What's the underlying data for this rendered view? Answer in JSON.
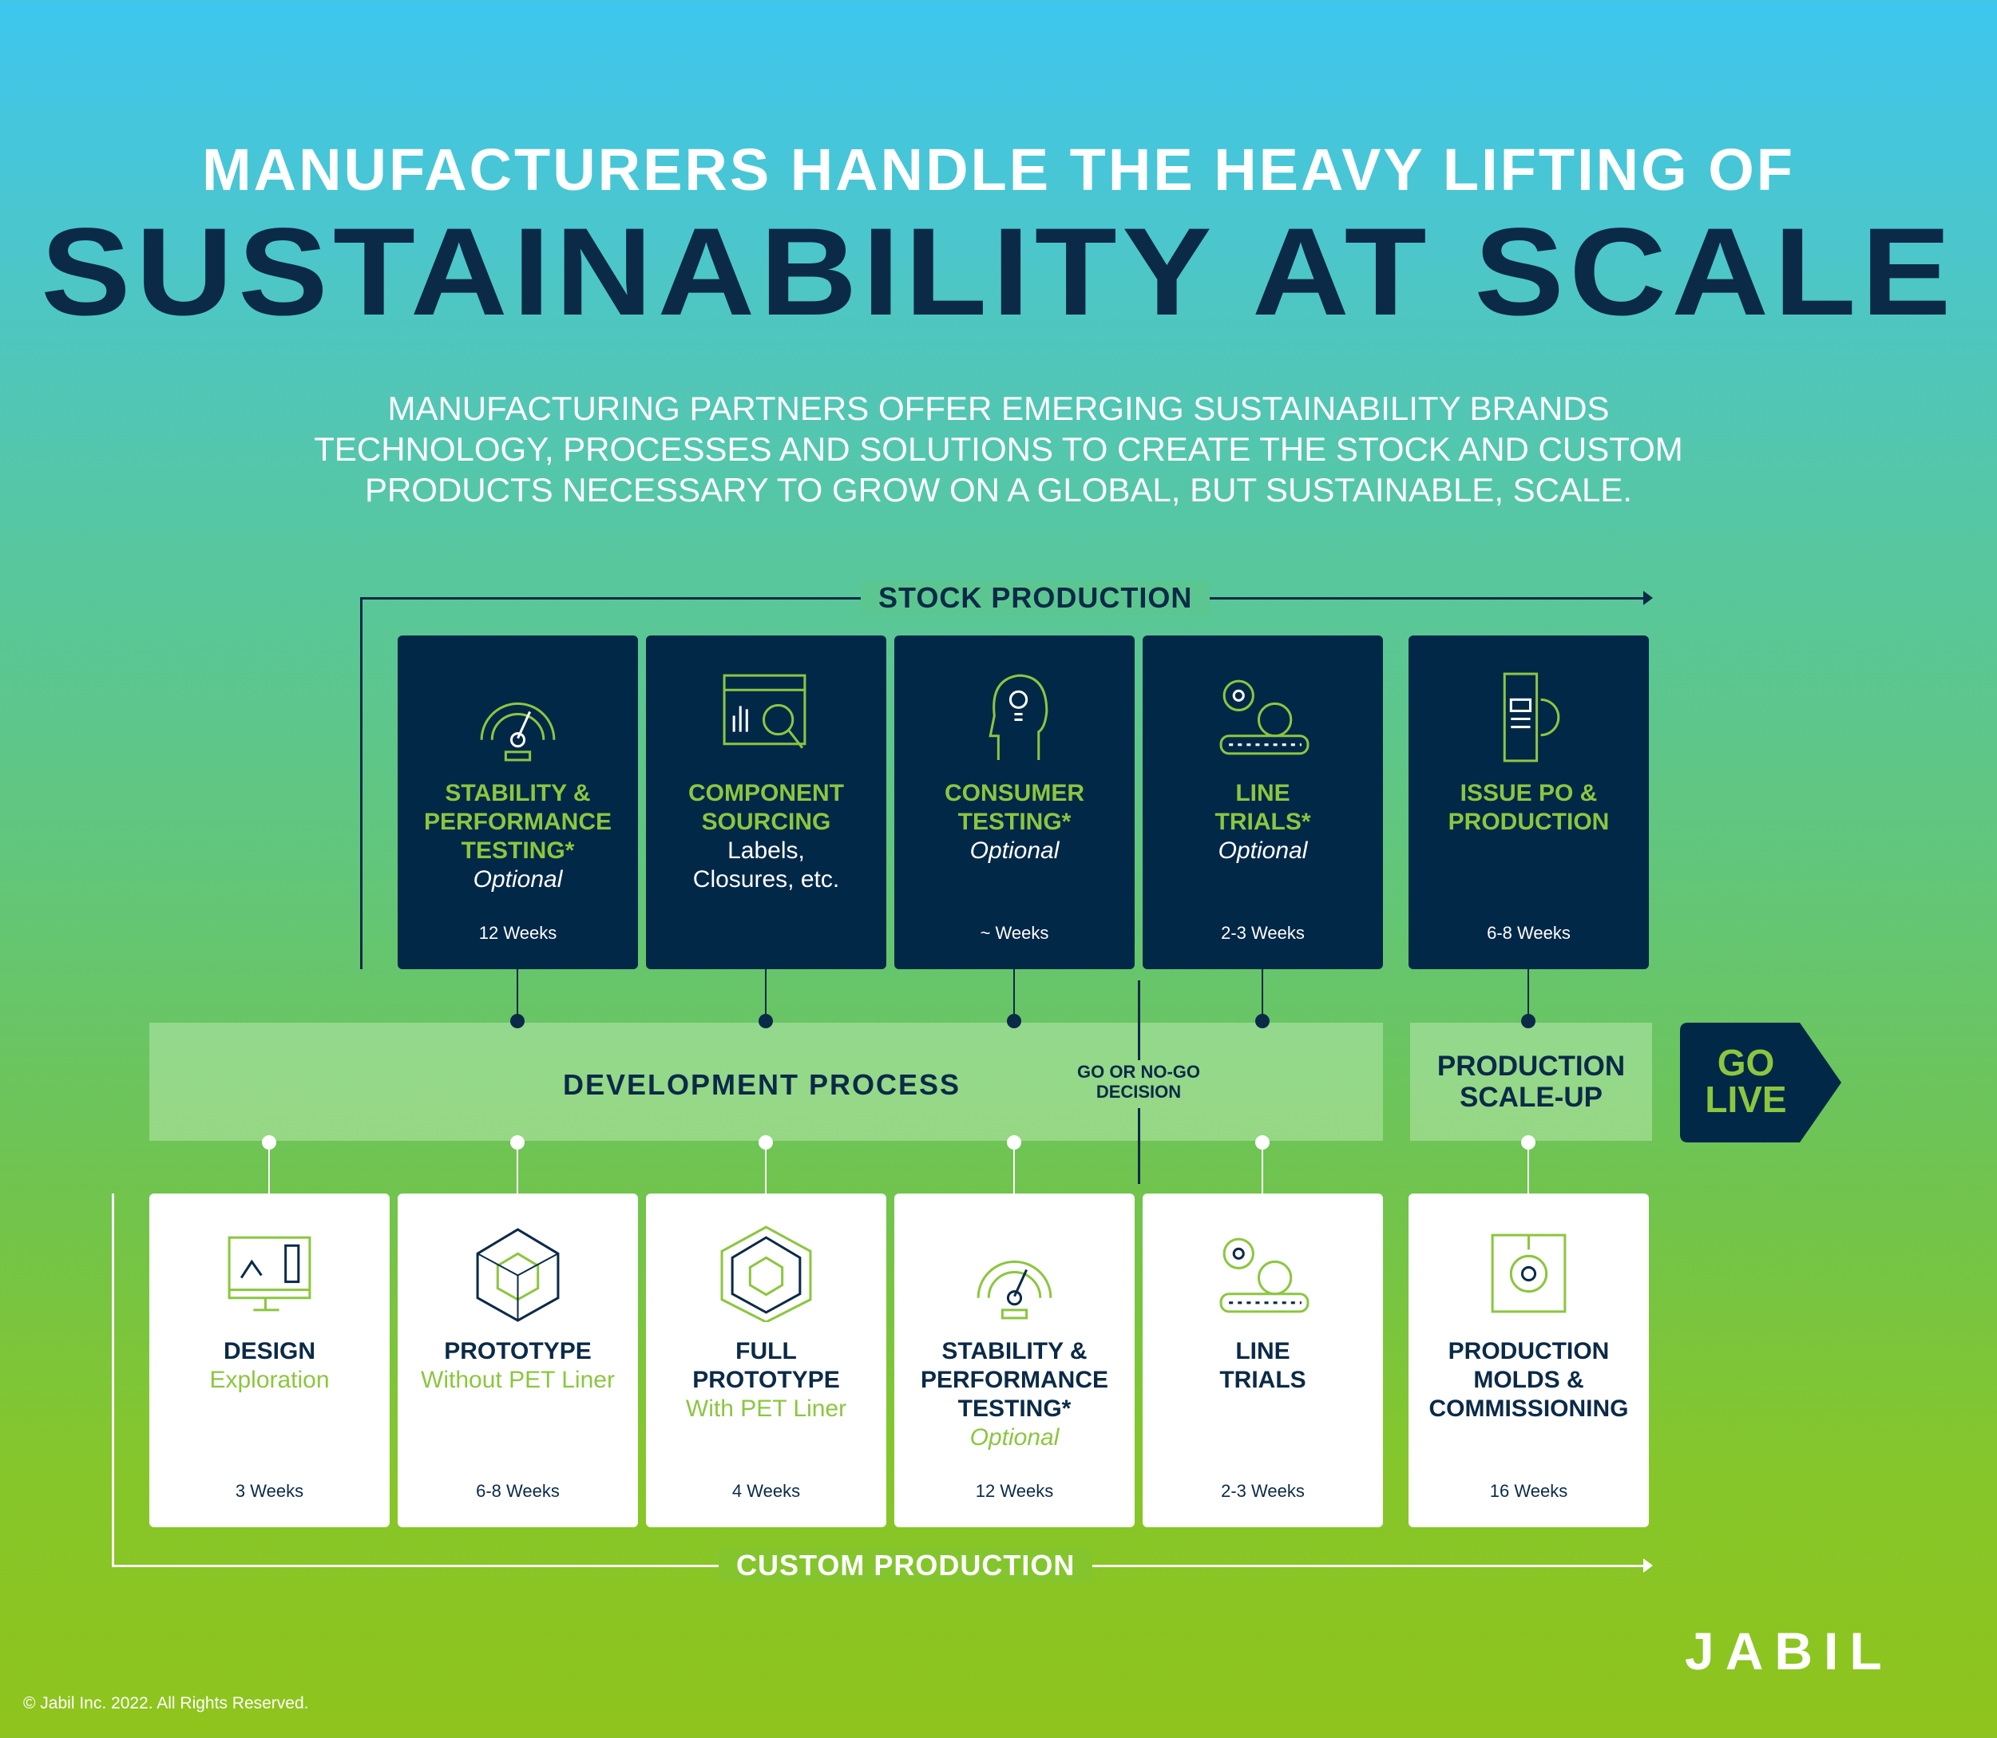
{
  "title": {
    "line1": "MANUFACTURERS HANDLE THE HEAVY LIFTING OF",
    "line2": "SUSTAINABILITY AT SCALE"
  },
  "intro": [
    "MANUFACTURING PARTNERS OFFER EMERGING SUSTAINABILITY BRANDS",
    "TECHNOLOGY, PROCESSES AND SOLUTIONS TO CREATE THE STOCK AND CUSTOM",
    "PRODUCTS NECESSARY TO GROW ON A GLOBAL, BUT SUSTAINABLE, SCALE."
  ],
  "stock": {
    "label": "STOCK PRODUCTION",
    "cards": [
      {
        "icon": "gauge-icon",
        "title": [
          "STABILITY &",
          "PERFORMANCE",
          "TESTING*"
        ],
        "sub": [
          "Optional"
        ],
        "italic": true,
        "weeks": "12 Weeks"
      },
      {
        "icon": "chart-magnifier-icon",
        "title": [
          "COMPONENT",
          "SOURCING"
        ],
        "sub": [
          "Labels,",
          "Closures, etc."
        ],
        "italic": false,
        "weeks": ""
      },
      {
        "icon": "head-lightbulb-icon",
        "title": [
          "CONSUMER",
          "TESTING*"
        ],
        "sub": [
          "Optional"
        ],
        "italic": true,
        "weeks": "~ Weeks"
      },
      {
        "icon": "gears-conveyor-icon",
        "title": [
          "LINE",
          "TRIALS*"
        ],
        "sub": [
          "Optional"
        ],
        "italic": true,
        "weeks": "2-3 Weeks"
      },
      {
        "icon": "document-gear-icon",
        "title": [
          "ISSUE PO &",
          "PRODUCTION"
        ],
        "sub": [],
        "italic": false,
        "weeks": "6-8 Weeks"
      }
    ]
  },
  "process": {
    "development": "DEVELOPMENT PROCESS",
    "decision": [
      "GO OR NO-GO",
      "DECISION"
    ],
    "scaleup": [
      "PRODUCTION",
      "SCALE-UP"
    ],
    "golive": [
      "GO",
      "LIVE"
    ]
  },
  "custom": {
    "label": "CUSTOM PRODUCTION",
    "cards": [
      {
        "icon": "monitor-design-icon",
        "title": [
          "DESIGN"
        ],
        "sub": [
          "Exploration"
        ],
        "italic": false,
        "weeks": "3 Weeks"
      },
      {
        "icon": "cube-wireframe-icon",
        "title": [
          "PROTOTYPE"
        ],
        "sub": [
          "Without PET Liner"
        ],
        "italic": false,
        "weeks": "6-8 Weeks"
      },
      {
        "icon": "cube-hexagon-icon",
        "title": [
          "FULL",
          "PROTOTYPE"
        ],
        "sub": [
          "With PET Liner"
        ],
        "italic": false,
        "weeks": "4 Weeks"
      },
      {
        "icon": "gauge-icon",
        "title": [
          "STABILITY &",
          "PERFORMANCE",
          "TESTING*"
        ],
        "sub": [
          "Optional"
        ],
        "italic": true,
        "weeks": "12 Weeks"
      },
      {
        "icon": "gears-conveyor-icon",
        "title": [
          "LINE",
          "TRIALS"
        ],
        "sub": [],
        "italic": false,
        "weeks": "2-3 Weeks"
      },
      {
        "icon": "mold-gear-icon",
        "title": [
          "PRODUCTION",
          "MOLDS &",
          "COMMISSIONING"
        ],
        "sub": [],
        "italic": false,
        "weeks": "16 Weeks"
      }
    ]
  },
  "logo": "JABIL",
  "copyright": "© Jabil Inc. 2022. All Rights Reserved.",
  "colors": {
    "navy": "#022848",
    "green": "#8cc63f"
  }
}
